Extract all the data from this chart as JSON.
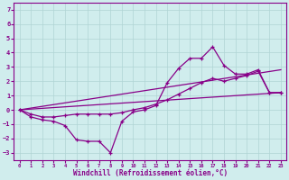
{
  "xlabel": "Windchill (Refroidissement éolien,°C)",
  "bg_color": "#d0eded",
  "grid_color": "#b0d4d4",
  "line_color": "#880088",
  "xlim": [
    -0.5,
    23.5
  ],
  "ylim": [
    -3.5,
    7.5
  ],
  "xticks": [
    0,
    1,
    2,
    3,
    4,
    5,
    6,
    7,
    8,
    9,
    10,
    11,
    12,
    13,
    14,
    15,
    16,
    17,
    18,
    19,
    20,
    21,
    22,
    23
  ],
  "yticks": [
    -3,
    -2,
    -1,
    0,
    1,
    2,
    3,
    4,
    5,
    6,
    7
  ],
  "line1_x": [
    0,
    1,
    2,
    3,
    4,
    5,
    6,
    7,
    8,
    9,
    10,
    11,
    12,
    13,
    14,
    15,
    16,
    17,
    18,
    19,
    20,
    21,
    22,
    23
  ],
  "line1_y": [
    0.0,
    -0.5,
    -0.7,
    -0.8,
    -1.1,
    -2.1,
    -2.2,
    -2.2,
    -3.0,
    -0.8,
    -0.15,
    0.0,
    0.3,
    1.9,
    2.9,
    3.6,
    3.6,
    4.4,
    3.1,
    2.5,
    2.5,
    2.8,
    1.2,
    1.2
  ],
  "line2_x": [
    0,
    1,
    2,
    3,
    4,
    5,
    6,
    7,
    8,
    9,
    10,
    11,
    12,
    13,
    14,
    15,
    16,
    17,
    18,
    19,
    20,
    21,
    22,
    23
  ],
  "line2_y": [
    0.0,
    -0.3,
    -0.5,
    -0.5,
    -0.4,
    -0.3,
    -0.3,
    -0.3,
    -0.3,
    -0.2,
    0.0,
    0.15,
    0.4,
    0.7,
    1.1,
    1.5,
    1.9,
    2.2,
    2.0,
    2.2,
    2.4,
    2.7,
    1.2,
    1.2
  ],
  "line3_x": [
    0,
    23
  ],
  "line3_y": [
    0.0,
    1.2
  ],
  "line4_x": [
    0,
    23
  ],
  "line4_y": [
    0.0,
    2.8
  ],
  "marker": "+"
}
